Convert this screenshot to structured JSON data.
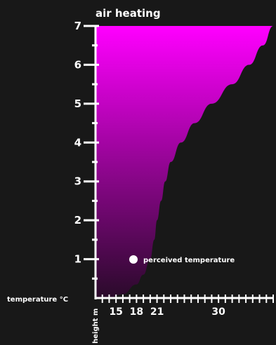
{
  "chart_data": {
    "type": "area",
    "title": "air heating",
    "xlabel": "temperature °C",
    "ylabel": "height m",
    "xlim": [
      12,
      38
    ],
    "ylim": [
      0,
      7
    ],
    "xticks": [
      15,
      18,
      21,
      30
    ],
    "yticks": [
      1,
      2,
      3,
      4,
      5,
      6,
      7
    ],
    "legend": {
      "label": "perceived temperature",
      "color": "#ffffff",
      "position": "lower-middle"
    },
    "gradient": {
      "bottom": "#2a0a2a",
      "top": "#ff00ff"
    },
    "series": [
      {
        "values_x": [
          12,
          14,
          16,
          18,
          19,
          20,
          20.6,
          21,
          21.6,
          22.2,
          23,
          24.5,
          26.5,
          29,
          32,
          34.5,
          36.5,
          38
        ],
        "values_y": [
          0,
          0,
          0.1,
          0.35,
          0.6,
          1.0,
          1.5,
          2.0,
          2.5,
          3.0,
          3.5,
          4.0,
          4.5,
          5.0,
          5.5,
          6.0,
          6.5,
          7.0
        ]
      }
    ]
  }
}
